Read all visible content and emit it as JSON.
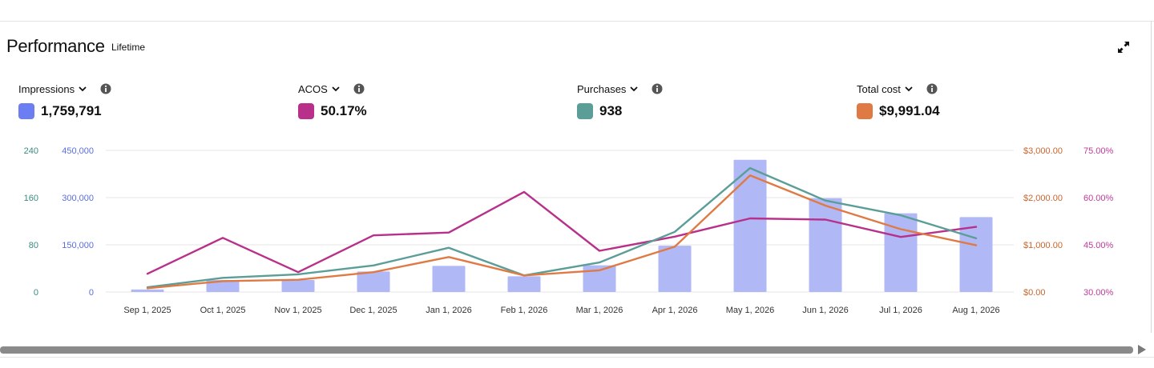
{
  "card": {
    "title": "Performance",
    "subtitle": "Lifetime"
  },
  "metrics": [
    {
      "label": "Impressions",
      "value": "1,759,791",
      "color": "#6b7ff2"
    },
    {
      "label": "ACOS",
      "value": "50.17%",
      "color": "#b8308a"
    },
    {
      "label": "Purchases",
      "value": "938",
      "color": "#5a9e97"
    },
    {
      "label": "Total cost",
      "value": "$9,991.04",
      "color": "#e07a45"
    }
  ],
  "icons": {
    "expand": "expand-icon",
    "info": "info-icon",
    "chevron": "chevron-down-icon"
  },
  "chart_data": {
    "type": "bar",
    "categories": [
      "Sep 1, 2025",
      "Oct 1, 2025",
      "Nov 1, 2025",
      "Dec 1, 2025",
      "Jan 1, 2026",
      "Feb 1, 2026",
      "Mar 1, 2026",
      "Apr 1, 2026",
      "May 1, 2026",
      "Jun 1, 2026",
      "Jul 1, 2026",
      "Aug 1, 2026"
    ],
    "grid": true,
    "axes": {
      "purchases": {
        "side": "left-outer",
        "color": "#3b8a82",
        "range": [
          0,
          240
        ],
        "ticks": [
          "0",
          "80",
          "160",
          "240"
        ]
      },
      "impressions": {
        "side": "left-inner",
        "color": "#5a6ee0",
        "range": [
          0,
          450000
        ],
        "ticks": [
          "0",
          "150,000",
          "300,000",
          "450,000"
        ]
      },
      "total_cost": {
        "side": "right-inner",
        "color": "#c8652e",
        "range": [
          0,
          3000
        ],
        "ticks": [
          "$0.00",
          "$1,000.00",
          "$2,000.00",
          "$3,000.00"
        ]
      },
      "acos": {
        "side": "right-outer",
        "color": "#c0399a",
        "range": [
          30,
          75
        ],
        "ticks": [
          "30.00%",
          "45.00%",
          "60.00%",
          "75.00%"
        ]
      }
    },
    "series": [
      {
        "name": "Impressions",
        "type": "bar",
        "axis": "impressions",
        "color": "#b0b8f5",
        "values": [
          8000,
          38000,
          38000,
          65000,
          83000,
          50000,
          85000,
          147000,
          420000,
          298000,
          250000,
          238000
        ]
      },
      {
        "name": "ACOS",
        "type": "line",
        "axis": "acos",
        "color": "#b8308a",
        "values": [
          35.8,
          47.2,
          36.3,
          48.0,
          48.9,
          61.8,
          43.1,
          47.6,
          53.4,
          53.0,
          47.5,
          50.7
        ]
      },
      {
        "name": "Purchases",
        "type": "line",
        "axis": "purchases",
        "color": "#5a9e97",
        "values": [
          8,
          24,
          30,
          45,
          75,
          28,
          50,
          102,
          210,
          155,
          130,
          91
        ]
      },
      {
        "name": "Total cost",
        "type": "line",
        "axis": "total_cost",
        "color": "#e07a45",
        "values": [
          80,
          230,
          260,
          420,
          740,
          350,
          460,
          960,
          2470,
          1830,
          1330,
          990
        ]
      }
    ]
  }
}
